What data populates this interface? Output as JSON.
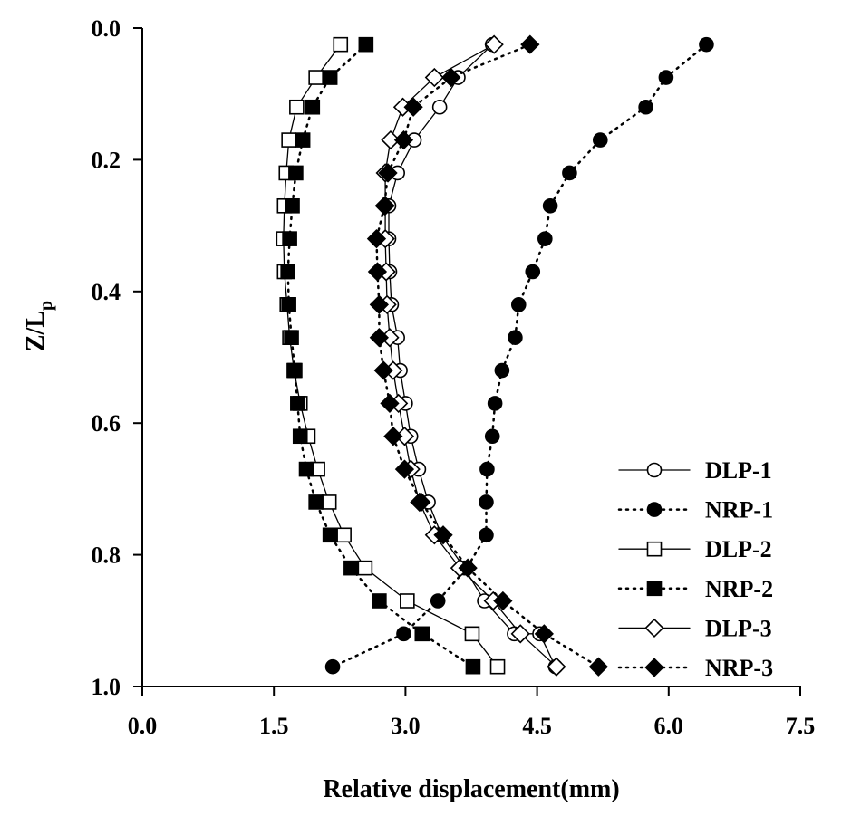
{
  "chart_data": {
    "type": "line",
    "title": "",
    "xlabel": "Relative displacement(mm)",
    "ylabel": {
      "main": "Z/L",
      "sub": "p"
    },
    "xlim": [
      0,
      7.5
    ],
    "ylim": [
      0,
      1.0
    ],
    "y_inverted": true,
    "x_ticks": [
      "0.0",
      "1.5",
      "3.0",
      "4.5",
      "6.0",
      "7.5"
    ],
    "y_ticks": [
      "0.0",
      "0.2",
      "0.4",
      "0.6",
      "0.8",
      "1.0"
    ],
    "grid": false,
    "legend_position": "bottom-right",
    "series": [
      {
        "name": "DLP-1",
        "line": "solid",
        "marker": "circle",
        "fill": "open",
        "x": [
          3.99,
          3.6,
          3.39,
          3.1,
          2.91,
          2.81,
          2.81,
          2.82,
          2.84,
          2.91,
          2.94,
          3.0,
          3.06,
          3.15,
          3.26,
          3.41,
          3.67,
          3.9,
          4.24,
          4.53,
          4.71
        ],
        "y": [
          0.025,
          0.075,
          0.12,
          0.17,
          0.22,
          0.27,
          0.32,
          0.37,
          0.42,
          0.47,
          0.52,
          0.57,
          0.62,
          0.67,
          0.72,
          0.77,
          0.82,
          0.87,
          0.92,
          0.92,
          0.97
        ]
      },
      {
        "name": "NRP-1",
        "line": "dotted",
        "marker": "circle",
        "fill": "filled",
        "x": [
          6.43,
          5.97,
          5.74,
          5.22,
          4.87,
          4.65,
          4.59,
          4.45,
          4.29,
          4.25,
          4.1,
          4.02,
          3.99,
          3.93,
          3.92,
          3.92,
          3.7,
          3.37,
          2.98,
          2.17
        ],
        "y": [
          0.025,
          0.075,
          0.12,
          0.17,
          0.22,
          0.27,
          0.32,
          0.37,
          0.42,
          0.47,
          0.52,
          0.57,
          0.62,
          0.67,
          0.72,
          0.77,
          0.82,
          0.87,
          0.92,
          0.97
        ]
      },
      {
        "name": "DLP-2",
        "line": "solid",
        "marker": "square",
        "fill": "open",
        "x": [
          2.26,
          1.98,
          1.76,
          1.67,
          1.64,
          1.62,
          1.61,
          1.62,
          1.65,
          1.68,
          1.73,
          1.8,
          1.89,
          2.0,
          2.13,
          2.3,
          2.54,
          3.02,
          3.76,
          4.05
        ],
        "y": [
          0.025,
          0.075,
          0.12,
          0.17,
          0.22,
          0.27,
          0.32,
          0.37,
          0.42,
          0.47,
          0.52,
          0.57,
          0.62,
          0.67,
          0.72,
          0.77,
          0.82,
          0.87,
          0.92,
          0.97
        ]
      },
      {
        "name": "NRP-2",
        "line": "dotted",
        "marker": "square",
        "fill": "filled",
        "x": [
          2.55,
          2.14,
          1.94,
          1.83,
          1.75,
          1.71,
          1.68,
          1.66,
          1.67,
          1.7,
          1.74,
          1.77,
          1.8,
          1.87,
          1.98,
          2.14,
          2.38,
          2.7,
          3.19,
          3.77
        ],
        "y": [
          0.025,
          0.075,
          0.12,
          0.17,
          0.22,
          0.27,
          0.32,
          0.37,
          0.42,
          0.47,
          0.52,
          0.57,
          0.62,
          0.67,
          0.72,
          0.77,
          0.82,
          0.87,
          0.92,
          0.97
        ]
      },
      {
        "name": "DLP-3",
        "line": "solid",
        "marker": "diamond",
        "fill": "open",
        "x": [
          4.01,
          3.33,
          2.97,
          2.83,
          2.77,
          2.77,
          2.77,
          2.78,
          2.79,
          2.82,
          2.86,
          2.92,
          2.99,
          3.06,
          3.16,
          3.33,
          3.62,
          4.0,
          4.31,
          4.72
        ],
        "y": [
          0.025,
          0.075,
          0.12,
          0.17,
          0.22,
          0.27,
          0.32,
          0.37,
          0.42,
          0.47,
          0.52,
          0.57,
          0.62,
          0.67,
          0.72,
          0.77,
          0.82,
          0.87,
          0.92,
          0.97
        ]
      },
      {
        "name": "NRP-3",
        "line": "dotted",
        "marker": "diamond",
        "fill": "filled",
        "x": [
          4.42,
          3.52,
          3.09,
          2.98,
          2.8,
          2.76,
          2.67,
          2.68,
          2.7,
          2.7,
          2.75,
          2.82,
          2.86,
          2.99,
          3.18,
          3.43,
          3.71,
          4.11,
          4.58,
          5.2
        ],
        "y": [
          0.025,
          0.075,
          0.12,
          0.17,
          0.22,
          0.27,
          0.32,
          0.37,
          0.42,
          0.47,
          0.52,
          0.57,
          0.62,
          0.67,
          0.72,
          0.77,
          0.82,
          0.87,
          0.92,
          0.97
        ]
      }
    ]
  }
}
